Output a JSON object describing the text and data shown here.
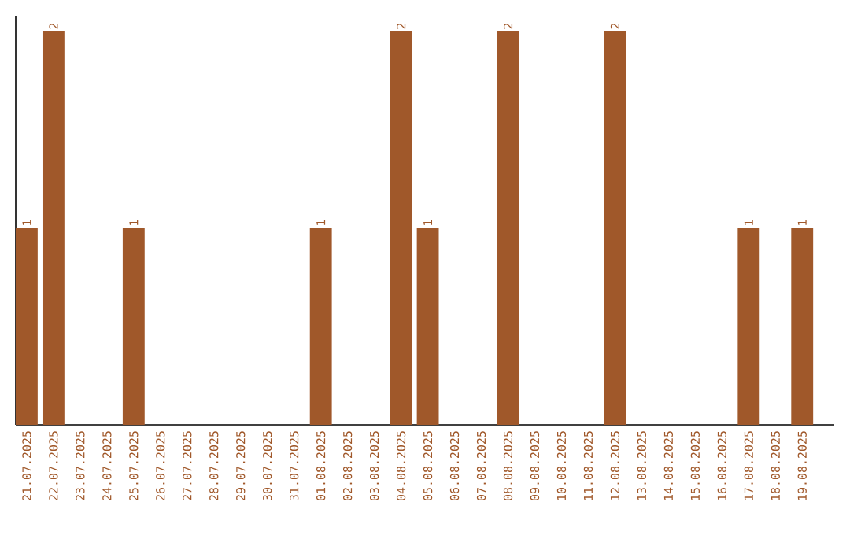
{
  "chart_data": {
    "type": "bar",
    "categories": [
      "21.07.2025",
      "22.07.2025",
      "23.07.2025",
      "24.07.2025",
      "25.07.2025",
      "26.07.2025",
      "27.07.2025",
      "28.07.2025",
      "29.07.2025",
      "30.07.2025",
      "31.07.2025",
      "01.08.2025",
      "02.08.2025",
      "03.08.2025",
      "04.08.2025",
      "05.08.2025",
      "06.08.2025",
      "07.08.2025",
      "08.08.2025",
      "09.08.2025",
      "10.08.2025",
      "11.08.2025",
      "12.08.2025",
      "13.08.2025",
      "14.08.2025",
      "15.08.2025",
      "16.08.2025",
      "17.08.2025",
      "18.08.2025",
      "19.08.2025"
    ],
    "values": [
      1,
      2,
      0,
      0,
      1,
      0,
      0,
      0,
      0,
      0,
      0,
      1,
      0,
      0,
      2,
      1,
      0,
      0,
      2,
      0,
      0,
      0,
      2,
      0,
      0,
      0,
      0,
      1,
      0,
      1
    ],
    "value_labels": [
      "1",
      "2",
      null,
      null,
      "1",
      null,
      null,
      null,
      null,
      null,
      null,
      "1",
      null,
      null,
      "2",
      "1",
      null,
      null,
      "2",
      null,
      null,
      null,
      "2",
      null,
      null,
      null,
      null,
      "1",
      null,
      "1"
    ],
    "color": "#a0582a",
    "ylim": [
      0,
      2.08
    ],
    "tick_labels": "x"
  }
}
